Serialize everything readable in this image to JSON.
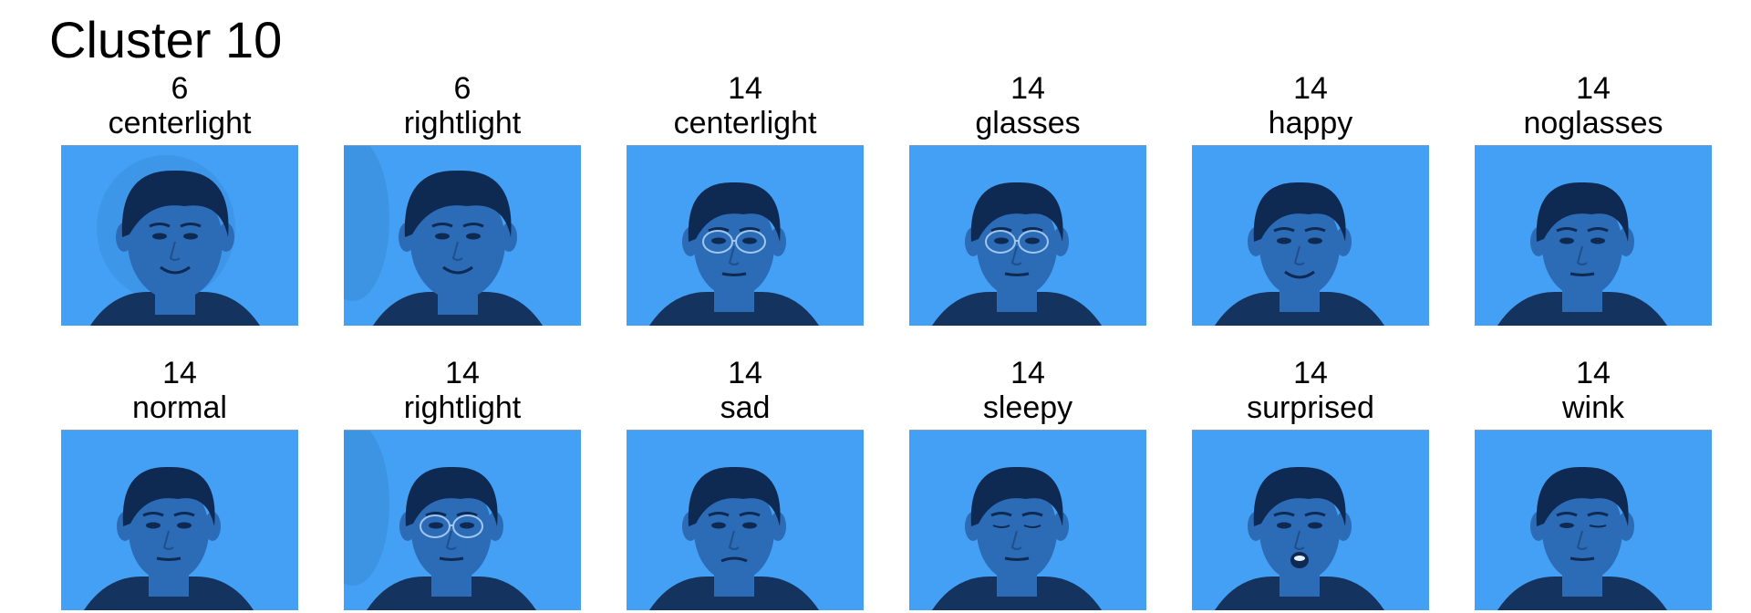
{
  "title": "Cluster 10",
  "colors": {
    "background": "#44a0f4",
    "face": "#2c6bb6",
    "hair": "#0f2a52",
    "shirt": "#14335e"
  },
  "images": [
    {
      "subject": "6",
      "condition": "centerlight",
      "variant": "s6c"
    },
    {
      "subject": "6",
      "condition": "rightlight",
      "variant": "s6r"
    },
    {
      "subject": "14",
      "condition": "centerlight",
      "variant": "glasses"
    },
    {
      "subject": "14",
      "condition": "glasses",
      "variant": "glasses"
    },
    {
      "subject": "14",
      "condition": "happy",
      "variant": "smile"
    },
    {
      "subject": "14",
      "condition": "noglasses",
      "variant": "plain"
    },
    {
      "subject": "14",
      "condition": "normal",
      "variant": "plain"
    },
    {
      "subject": "14",
      "condition": "rightlight",
      "variant": "glasses-shadow"
    },
    {
      "subject": "14",
      "condition": "sad",
      "variant": "sad"
    },
    {
      "subject": "14",
      "condition": "sleepy",
      "variant": "closed"
    },
    {
      "subject": "14",
      "condition": "surprised",
      "variant": "open-mouth"
    },
    {
      "subject": "14",
      "condition": "wink",
      "variant": "wink"
    }
  ]
}
